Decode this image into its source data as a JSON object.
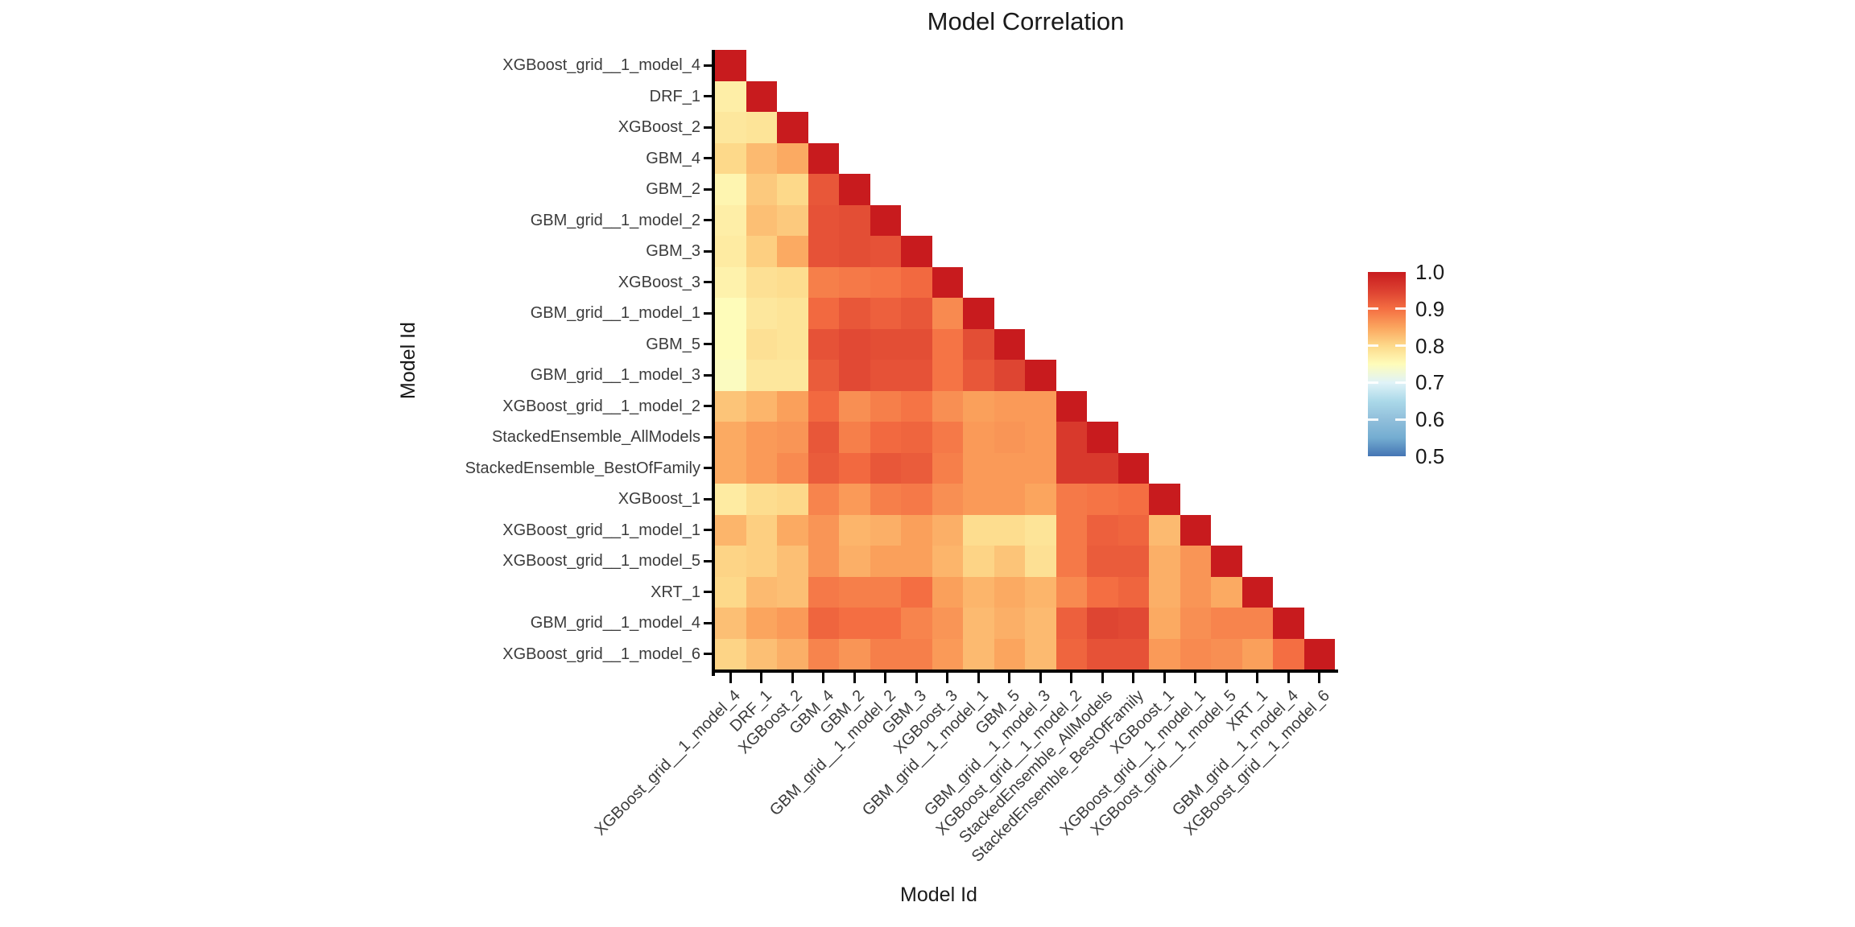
{
  "title": "Model Correlation",
  "axes": {
    "x_title": "Model Id",
    "y_title": "Model Id"
  },
  "chart_data": {
    "type": "heatmap",
    "title": "Model Correlation",
    "xlabel": "Model Id",
    "ylabel": "Model Id",
    "shape": "lower_triangular",
    "grid": false,
    "legend_position": "right",
    "categories": [
      "XGBoost_grid__1_model_4",
      "DRF_1",
      "XGBoost_2",
      "GBM_4",
      "GBM_2",
      "GBM_grid__1_model_2",
      "GBM_3",
      "XGBoost_3",
      "GBM_grid__1_model_1",
      "GBM_5",
      "GBM_grid__1_model_3",
      "XGBoost_grid__1_model_2",
      "StackedEnsemble_AllModels",
      "StackedEnsemble_BestOfFamily",
      "XGBoost_1",
      "XGBoost_grid__1_model_1",
      "XGBoost_grid__1_model_5",
      "XRT_1",
      "GBM_grid__1_model_4",
      "XGBoost_grid__1_model_6"
    ],
    "matrix": [
      [
        1.0
      ],
      [
        0.77,
        1.0
      ],
      [
        0.78,
        0.785,
        1.0
      ],
      [
        0.8,
        0.83,
        0.845,
        1.0
      ],
      [
        0.76,
        0.815,
        0.8,
        0.925,
        1.0
      ],
      [
        0.77,
        0.825,
        0.815,
        0.93,
        0.935,
        1.0
      ],
      [
        0.775,
        0.81,
        0.845,
        0.93,
        0.935,
        0.93,
        1.0
      ],
      [
        0.765,
        0.79,
        0.795,
        0.885,
        0.89,
        0.895,
        0.905,
        1.0
      ],
      [
        0.75,
        0.78,
        0.785,
        0.905,
        0.925,
        0.915,
        0.925,
        0.875,
        1.0
      ],
      [
        0.75,
        0.79,
        0.785,
        0.93,
        0.94,
        0.935,
        0.935,
        0.895,
        0.935,
        1.0
      ],
      [
        0.745,
        0.78,
        0.78,
        0.92,
        0.94,
        0.93,
        0.93,
        0.895,
        0.925,
        0.945,
        1.0
      ],
      [
        0.82,
        0.835,
        0.855,
        0.905,
        0.87,
        0.885,
        0.895,
        0.87,
        0.855,
        0.86,
        0.86,
        1.0
      ],
      [
        0.845,
        0.86,
        0.865,
        0.925,
        0.885,
        0.905,
        0.91,
        0.89,
        0.86,
        0.865,
        0.86,
        0.96,
        1.0
      ],
      [
        0.845,
        0.86,
        0.875,
        0.92,
        0.905,
        0.925,
        0.92,
        0.885,
        0.86,
        0.86,
        0.86,
        0.96,
        0.96,
        1.0
      ],
      [
        0.775,
        0.795,
        0.8,
        0.88,
        0.86,
        0.885,
        0.89,
        0.87,
        0.86,
        0.86,
        0.85,
        0.89,
        0.895,
        0.9,
        1.0
      ],
      [
        0.835,
        0.81,
        0.845,
        0.865,
        0.835,
        0.84,
        0.855,
        0.84,
        0.795,
        0.795,
        0.785,
        0.89,
        0.915,
        0.91,
        0.83,
        1.0
      ],
      [
        0.805,
        0.81,
        0.825,
        0.865,
        0.84,
        0.855,
        0.855,
        0.835,
        0.805,
        0.82,
        0.79,
        0.89,
        0.92,
        0.92,
        0.84,
        0.865,
        1.0
      ],
      [
        0.8,
        0.83,
        0.825,
        0.89,
        0.885,
        0.885,
        0.9,
        0.855,
        0.835,
        0.845,
        0.835,
        0.875,
        0.9,
        0.91,
        0.84,
        0.865,
        0.845,
        1.0
      ],
      [
        0.825,
        0.85,
        0.86,
        0.91,
        0.9,
        0.9,
        0.88,
        0.865,
        0.83,
        0.84,
        0.83,
        0.915,
        0.945,
        0.94,
        0.845,
        0.87,
        0.88,
        0.88,
        1.0
      ],
      [
        0.805,
        0.825,
        0.84,
        0.88,
        0.865,
        0.885,
        0.885,
        0.86,
        0.83,
        0.85,
        0.83,
        0.91,
        0.93,
        0.93,
        0.86,
        0.875,
        0.87,
        0.855,
        0.9,
        1.0
      ]
    ],
    "colorbar": {
      "min": 0.5,
      "max": 1.0,
      "tick_labels": [
        "1.0",
        "0.9",
        "0.8",
        "0.7",
        "0.6",
        "0.5"
      ]
    },
    "colorscale": [
      {
        "value": 0.5,
        "color": "#4575b4"
      },
      {
        "value": 0.55,
        "color": "#74add1"
      },
      {
        "value": 0.6,
        "color": "#91bfdb"
      },
      {
        "value": 0.65,
        "color": "#abd9e9"
      },
      {
        "value": 0.7,
        "color": "#e0f3f8"
      },
      {
        "value": 0.75,
        "color": "#fefcba"
      },
      {
        "value": 0.8,
        "color": "#fdd98a"
      },
      {
        "value": 0.85,
        "color": "#fba55e"
      },
      {
        "value": 0.9,
        "color": "#f46e42"
      },
      {
        "value": 0.95,
        "color": "#dc4030"
      },
      {
        "value": 1.0,
        "color": "#c81b1e"
      }
    ]
  }
}
